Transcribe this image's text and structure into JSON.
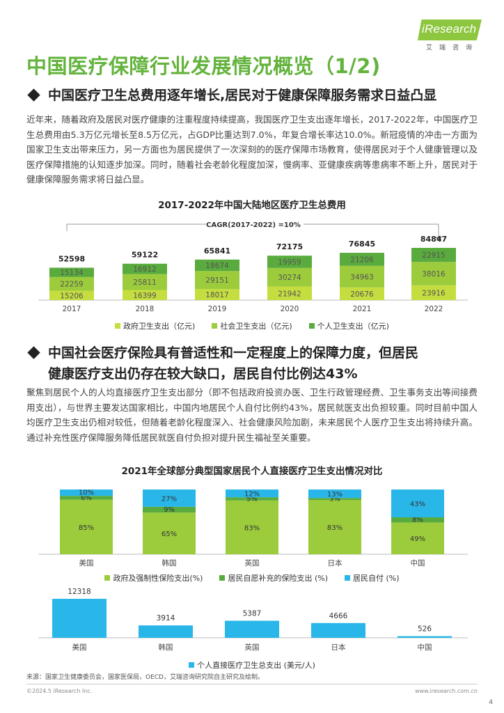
{
  "logo": {
    "text": "iResearch",
    "sub": "艾瑞咨询"
  },
  "page_title": "中国医疗保障行业发展情况概览（1/2)",
  "section1": {
    "heading": "中国医疗卫生总费用逐年增长,居民对于健康保障服务需求日益凸显",
    "paragraph": "近年来，随着政府及居民对医疗健康的注重程度持续提高，我国医疗卫生支出逐年增长，2017-2022年，中国医疗卫生总费用由5.3万亿元增长至8.5万亿元，占GDP比重达到7.0%，年复合增长率达10.0%。新冠疫情的冲击一方面为国家卫生支出带来压力，另一方面也为居民提供了一次深刻的的医疗保障市场教育，使得居民对于个人健康管理以及医疗保障措施的认知逐步加深。同时，随着社会老龄化程度加深，慢病率、亚健康疾病等患病率不断上升，居民对于健康保障服务需求将日益凸显。"
  },
  "section2": {
    "heading_line1": "中国社会医疗保险具有普适性和一定程度上的保障力度，但居民",
    "heading_line2": "健康医疗支出仍存在较大缺口，居民自付比例达43%",
    "paragraph": "聚焦到居民个人的人均直接医疗卫生支出部分（即不包括政府投资办医、卫生行政管理经费、卫生事务支出等间接费用支出），与世界主要发达国家相比，中国内地居民个人自付比例约43%，居民就医支出负担较重。同时目前中国人均医疗卫生支出仍相对较低，但随着老龄化程度深入、社会健康风险加剧，未来居民个人医疗卫生支出将持续升高。通过补充性医疗保障服务降低居民就医自付负担对提升民生福祉至关重要。"
  },
  "colors": {
    "gov": "#c5dd3f",
    "social": "#9ccc3c",
    "personal": "#5aab3d",
    "grey_bar": "#8a8a8a",
    "blue": "#29b6e8"
  },
  "chart_data": [
    {
      "type": "bar",
      "stacked": true,
      "title": "2017-2022年中国大陆地区医疗卫生总费用",
      "annotation": "CAGR(2017-2022) =10%",
      "categories": [
        "2017",
        "2018",
        "2019",
        "2020",
        "2021",
        "2022"
      ],
      "series": [
        {
          "name": "政府卫生支出（亿元)",
          "values": [
            15206,
            16399,
            18017,
            21942,
            20676,
            23916
          ]
        },
        {
          "name": "社会卫生支出（亿元)",
          "values": [
            22259,
            25811,
            29151,
            30274,
            34963,
            38016
          ]
        },
        {
          "name": "个人卫生支出（亿元)",
          "values": [
            15134,
            16912,
            18674,
            19959,
            21206,
            22915
          ]
        }
      ],
      "totals": [
        52598,
        59122,
        65841,
        72175,
        76845,
        84847
      ]
    },
    {
      "type": "bar",
      "stacked": true,
      "percent": true,
      "title": "2021年全球部分典型国家居民个人直接医疗卫生支出情况对比",
      "categories": [
        "美国",
        "韩国",
        "英国",
        "日本",
        "中国"
      ],
      "series": [
        {
          "name": "政府及强制性保险支出(%)",
          "values": [
            85,
            65,
            83,
            83,
            49
          ]
        },
        {
          "name": "居民自愿补充的保险支出 (%)",
          "values": [
            6,
            9,
            5,
            3,
            8
          ]
        },
        {
          "name": "居民自付 (%)",
          "values": [
            10,
            27,
            12,
            13,
            43
          ]
        }
      ]
    },
    {
      "type": "bar",
      "categories": [
        "美国",
        "韩国",
        "英国",
        "日本",
        "中国"
      ],
      "series": [
        {
          "name": "个人直接医疗卫生总支出 (美元/人)",
          "values": [
            12318,
            3914,
            5387,
            4666,
            526
          ]
        }
      ]
    }
  ],
  "source": "来源：国家卫生健康委员会，国家医保局，OECD，艾瑞咨询研究院自主研究及绘制。",
  "copyright": "©2024.5 iResearch Inc.",
  "website": "www.iresearch.com.cn",
  "page_number": "4"
}
